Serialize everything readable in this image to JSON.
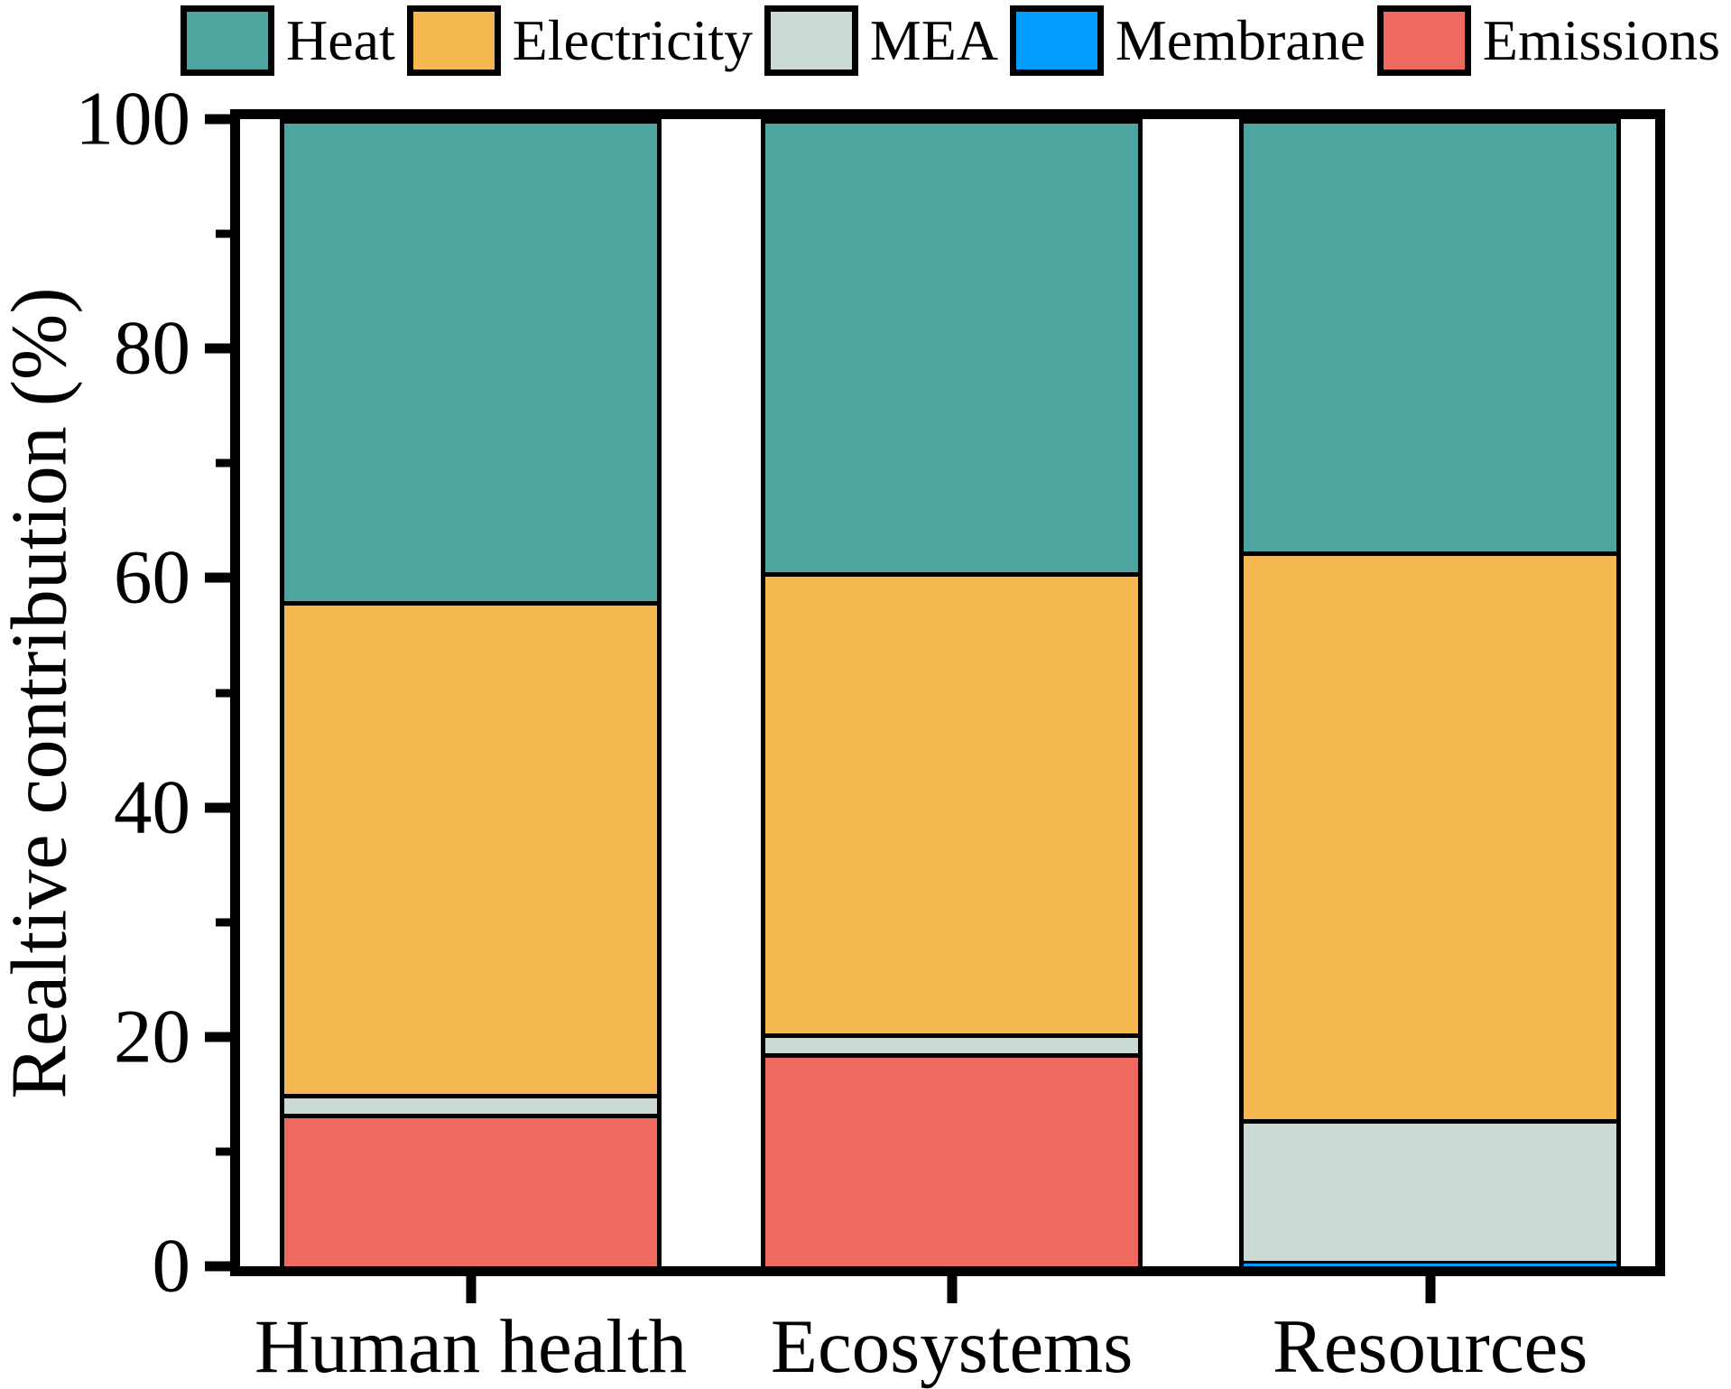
{
  "chart_data": {
    "type": "bar",
    "variant": "stacked-vertical",
    "title": "",
    "xlabel": "",
    "ylabel": "Realtive contribution (%)",
    "ylim": [
      0,
      100
    ],
    "yticks_major": [
      0,
      20,
      40,
      60,
      80,
      100
    ],
    "yticks_minor": [
      10,
      30,
      50,
      70,
      90
    ],
    "grid": "off",
    "legend_position": "top",
    "categories": [
      "Human health",
      "Ecosystems",
      "Resources"
    ],
    "stack_order_bottom_to_top": [
      "Emissions",
      "Membrane",
      "MEA",
      "Electricity",
      "Heat"
    ],
    "series": [
      {
        "name": "Heat",
        "color": "#4EA59F",
        "values": [
          42.0,
          39.5,
          37.7
        ]
      },
      {
        "name": "Electricity",
        "color": "#F5B851",
        "values": [
          43.0,
          40.2,
          49.5
        ]
      },
      {
        "name": "MEA",
        "color": "#CBDBD3",
        "values": [
          1.7,
          1.7,
          12.3
        ]
      },
      {
        "name": "Membrane",
        "color": "#009CFF",
        "values": [
          0.0,
          0.0,
          0.5
        ]
      },
      {
        "name": "Emissions",
        "color": "#EE6A5F",
        "values": [
          13.3,
          18.6,
          0.0
        ]
      }
    ],
    "bar_centers_percent": [
      16.3,
      50.3,
      84.1
    ],
    "bar_width_percent": 27.0,
    "axis_color": "#000000",
    "background_color": "#FFFFFF"
  }
}
